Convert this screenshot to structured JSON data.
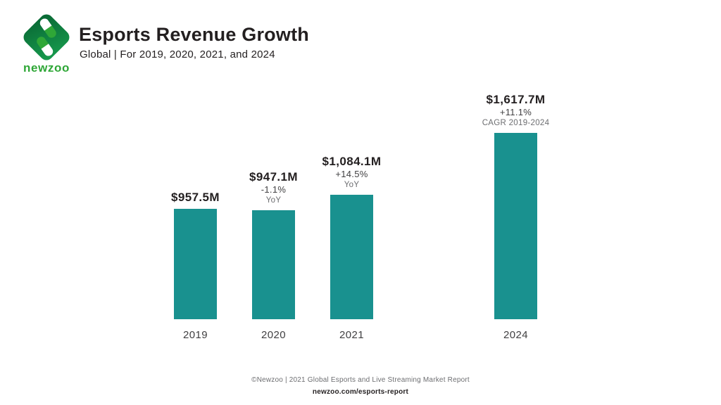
{
  "header": {
    "brand": "newzoo",
    "title": "Esports Revenue Growth",
    "subtitle": "Global | For 2019, 2020, 2021, and 2024"
  },
  "chart_data": {
    "type": "bar",
    "title": "Esports Revenue Growth",
    "subtitle": "Global | For 2019, 2020, 2021, and 2024",
    "unit": "USD millions",
    "categories": [
      "2019",
      "2020",
      "2021",
      "2024"
    ],
    "values": [
      957.5,
      947.1,
      1084.1,
      1617.7
    ],
    "ylim": [
      0,
      1700
    ],
    "grid": false,
    "legend": false,
    "note": "x-axis skips 2022 and 2023 (gap between 2021 and 2024 bars)",
    "bars": [
      {
        "year": "2019",
        "value_label": "$957.5M",
        "change_label": "",
        "change_sub": ""
      },
      {
        "year": "2020",
        "value_label": "$947.1M",
        "change_label": "-1.1%",
        "change_sub": "YoY"
      },
      {
        "year": "2021",
        "value_label": "$1,084.1M",
        "change_label": "+14.5%",
        "change_sub": "YoY"
      },
      {
        "year": "2024",
        "value_label": "$1,617.7M",
        "change_label": "+11.1%",
        "change_sub": "CAGR 2019-2024"
      }
    ]
  },
  "footer": {
    "source_line": "©Newzoo | 2021 Global Esports and Live Streaming Market Report",
    "link": "newzoo.com/esports-report"
  },
  "colors": {
    "bar": "#19918F",
    "brand_green": "#2FA737",
    "diamond_dark": "#0A6B36",
    "diamond_light": "#16984C",
    "text_dark": "#231F20",
    "text_gray": "#6D6E71"
  }
}
